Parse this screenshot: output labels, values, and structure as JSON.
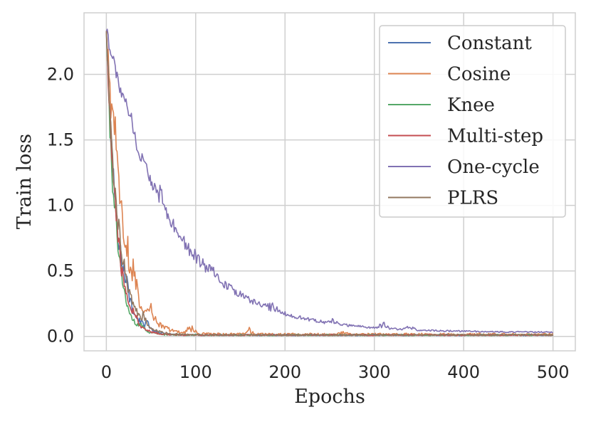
{
  "chart_data": {
    "type": "line",
    "xlabel": "Epochs",
    "ylabel": "Train loss",
    "xlim": [
      -25,
      525
    ],
    "ylim": [
      -0.11,
      2.47
    ],
    "xticks": [
      0,
      100,
      200,
      300,
      400,
      500
    ],
    "xtick_labels": [
      "0",
      "100",
      "200",
      "300",
      "400",
      "500"
    ],
    "yticks": [
      0.0,
      0.5,
      1.0,
      1.5,
      2.0
    ],
    "ytick_labels": [
      "0.0",
      "0.5",
      "1.0",
      "1.5",
      "2.0"
    ],
    "grid": true,
    "legend_position": "top-right",
    "series": [
      {
        "name": "Constant",
        "color": "#4c72b0",
        "start": 2.33,
        "decay": 12,
        "floor": 0.01,
        "noise": 0.09,
        "bumps": [
          [
            23,
            0.12
          ],
          [
            45,
            0.06
          ]
        ]
      },
      {
        "name": "Cosine",
        "color": "#dd8452",
        "start": 2.33,
        "decay": 17,
        "floor": 0.015,
        "noise": 0.12,
        "bumps": [
          [
            12,
            0.4
          ],
          [
            28,
            0.25
          ],
          [
            50,
            0.18
          ],
          [
            95,
            0.08
          ],
          [
            160,
            0.05
          ],
          [
            265,
            0.04
          ]
        ]
      },
      {
        "name": "Knee",
        "color": "#55a868",
        "start": 2.33,
        "decay": 10,
        "floor": 0.01,
        "noise": 0.08,
        "bumps": [
          [
            10,
            0.1
          ],
          [
            40,
            0.05
          ]
        ]
      },
      {
        "name": "Multi-step",
        "color": "#c44e52",
        "start": 2.33,
        "decay": 11,
        "floor": 0.01,
        "noise": 0.08,
        "bumps": [
          [
            8,
            0.15
          ],
          [
            30,
            0.07
          ]
        ]
      },
      {
        "name": "One-cycle",
        "color": "#8172b3",
        "start": 2.33,
        "decay": 72,
        "floor": 0.03,
        "noise": 0.05,
        "bumps": [
          [
            25,
            0.12
          ],
          [
            60,
            0.1
          ],
          [
            120,
            0.05
          ],
          [
            185,
            0.06
          ],
          [
            255,
            0.04
          ],
          [
            310,
            0.06
          ],
          [
            340,
            0.05
          ]
        ]
      },
      {
        "name": "PLRS",
        "color": "#937860",
        "start": 2.33,
        "decay": 13,
        "floor": 0.01,
        "noise": 0.09,
        "bumps": [
          [
            15,
            0.12
          ],
          [
            42,
            0.07
          ]
        ]
      }
    ]
  }
}
